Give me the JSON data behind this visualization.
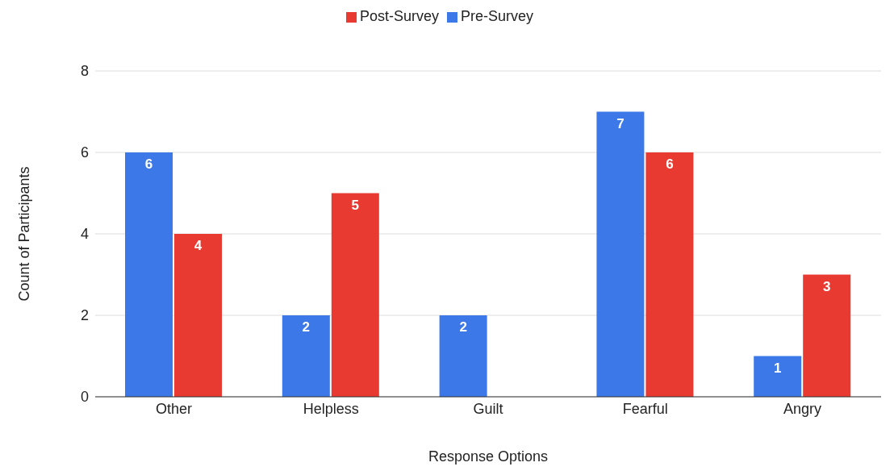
{
  "chart_data": {
    "type": "bar",
    "xlabel": "Response Options",
    "ylabel": "Count of Participants",
    "categories": [
      "Other",
      "Helpless",
      "Guilt",
      "Fearful",
      "Angry"
    ],
    "series": [
      {
        "name": "Pre-Survey",
        "color": "#3c78e8",
        "values": [
          6,
          2,
          2,
          7,
          1
        ],
        "value_labels": [
          "6",
          "2",
          "2",
          "7",
          "1"
        ]
      },
      {
        "name": "Post-Survey",
        "color": "#e93a32",
        "values": [
          4,
          5,
          0,
          6,
          3
        ],
        "value_labels": [
          "4",
          "5",
          null,
          "6",
          "3"
        ]
      }
    ],
    "ylim": [
      0,
      8
    ],
    "yticks": [
      0,
      2,
      4,
      6,
      8
    ],
    "grid": "y",
    "legend": "top"
  }
}
